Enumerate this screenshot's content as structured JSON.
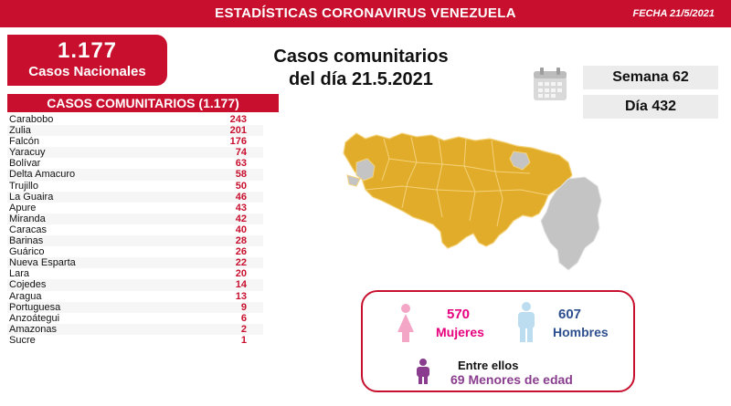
{
  "header": {
    "title": "ESTADÍSTICAS CORONAVIRUS VENEZUELA",
    "date": "FECHA 21/5/2021"
  },
  "total": {
    "value": "1.177",
    "label": "Casos Nacionales"
  },
  "headline": {
    "line1": "Casos comunitarios",
    "line2": "del día 21.5.2021"
  },
  "counters": {
    "week": "Semana 62",
    "day": "Día 432"
  },
  "table": {
    "title": "CASOS COMUNITARIOS (1.177)",
    "rows": [
      {
        "state": "Carabobo",
        "cases": "243"
      },
      {
        "state": "Zulia",
        "cases": "201"
      },
      {
        "state": "Falcón",
        "cases": "176"
      },
      {
        "state": "Yaracuy",
        "cases": "74"
      },
      {
        "state": "Bolívar",
        "cases": "63"
      },
      {
        "state": "Delta Amacuro",
        "cases": "58"
      },
      {
        "state": "Trujillo",
        "cases": "50"
      },
      {
        "state": "La Guaira",
        "cases": "46"
      },
      {
        "state": "Apure",
        "cases": "43"
      },
      {
        "state": "Miranda",
        "cases": "42"
      },
      {
        "state": "Caracas",
        "cases": "40"
      },
      {
        "state": "Barinas",
        "cases": "28"
      },
      {
        "state": "Guárico",
        "cases": "26"
      },
      {
        "state": "Nueva Esparta",
        "cases": "22"
      },
      {
        "state": "Lara",
        "cases": "20"
      },
      {
        "state": "Cojedes",
        "cases": "14"
      },
      {
        "state": "Aragua",
        "cases": "13"
      },
      {
        "state": "Portuguesa",
        "cases": "9"
      },
      {
        "state": "Anzoátegui",
        "cases": "6"
      },
      {
        "state": "Amazonas",
        "cases": "2"
      },
      {
        "state": "Sucre",
        "cases": "1"
      }
    ]
  },
  "gender": {
    "female_count": "570",
    "female_label": "Mujeres",
    "male_count": "607",
    "male_label": "Hombres",
    "among_label": "Entre ellos",
    "minors": "69 Menores de edad"
  },
  "colors": {
    "brand_red": "#c8102e",
    "map_gold": "#e1ac2a",
    "map_gray": "#c4c4c4",
    "female_pink": "#e6007e",
    "male_blue": "#2e4f8f",
    "minor_purple": "#8a3d8e"
  },
  "icons": {
    "calendar": "calendar-icon",
    "female": "female-person-icon",
    "male": "male-person-icon",
    "minor": "child-person-icon"
  }
}
